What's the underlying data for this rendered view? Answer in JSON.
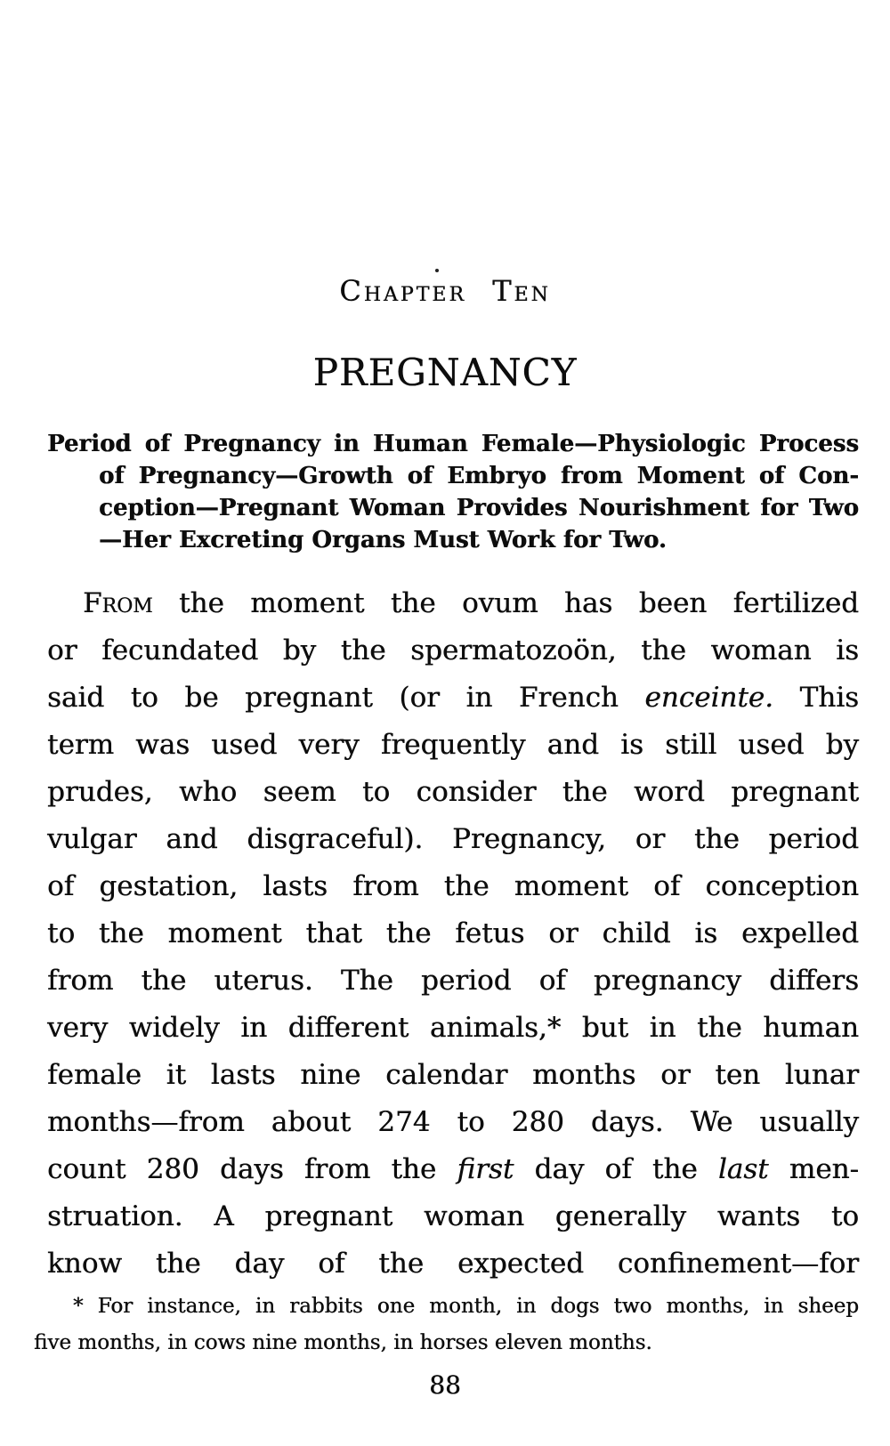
{
  "page": {
    "background": "#ffffff",
    "text_color": "#0d0d0d",
    "chapter_heading": "Chapter Ten",
    "title": "PREGNANCY",
    "page_number": "88"
  },
  "summary": {
    "lines": [
      {
        "parts": [
          {
            "t": "Period of Pregnancy in Human Female—Physiologic Process"
          }
        ],
        "indent": false,
        "justify": true
      },
      {
        "parts": [
          {
            "t": "of Pregnancy—Growth of Embryo from Moment of Con-"
          }
        ],
        "indent": true,
        "justify": true
      },
      {
        "parts": [
          {
            "t": "ception—Pregnant Woman Provides Nourishment for Two"
          }
        ],
        "indent": true,
        "justify": true
      },
      {
        "parts": [
          {
            "t": "—Her Excreting Organs Must Work for Two."
          }
        ],
        "indent": true,
        "justify": false
      }
    ]
  },
  "body": {
    "lines": [
      {
        "parts": [
          {
            "t": "From",
            "style": "smallcaps"
          },
          {
            "t": " the moment the ovum has been fertilized"
          }
        ],
        "first": true,
        "justify": true
      },
      {
        "parts": [
          {
            "t": "or fecundated by the spermatozoön, the woman is"
          }
        ],
        "justify": true
      },
      {
        "parts": [
          {
            "t": "said to be pregnant (or in French "
          },
          {
            "t": "enceinte.",
            "style": "italic"
          },
          {
            "t": " This"
          }
        ],
        "justify": true
      },
      {
        "parts": [
          {
            "t": "term was used very frequently and is still used by"
          }
        ],
        "justify": true
      },
      {
        "parts": [
          {
            "t": "prudes, who seem to consider the word pregnant"
          }
        ],
        "justify": true
      },
      {
        "parts": [
          {
            "t": "vulgar and disgraceful). Pregnancy, or the period"
          }
        ],
        "justify": true
      },
      {
        "parts": [
          {
            "t": "of gestation, lasts from the moment of conception"
          }
        ],
        "justify": true
      },
      {
        "parts": [
          {
            "t": "to the moment that the fetus or child is expelled"
          }
        ],
        "justify": true
      },
      {
        "parts": [
          {
            "t": "from the uterus. The period of pregnancy differs"
          }
        ],
        "justify": true
      },
      {
        "parts": [
          {
            "t": "very widely in different animals,* but in the human"
          }
        ],
        "justify": true
      },
      {
        "parts": [
          {
            "t": "female it lasts nine calendar months or ten lunar"
          }
        ],
        "justify": true
      },
      {
        "parts": [
          {
            "t": "months—from about 274 to 280 days. We usually"
          }
        ],
        "justify": true
      },
      {
        "parts": [
          {
            "t": "count 280 days from the "
          },
          {
            "t": "first",
            "style": "italic"
          },
          {
            "t": " day of the "
          },
          {
            "t": "last",
            "style": "italic"
          },
          {
            "t": " men-"
          }
        ],
        "justify": true
      },
      {
        "parts": [
          {
            "t": "struation. A pregnant woman generally wants to"
          }
        ],
        "justify": true
      },
      {
        "parts": [
          {
            "t": "know the day of the expected confinement—for"
          }
        ],
        "justify": true
      }
    ]
  },
  "footnote": {
    "lines": [
      {
        "parts": [
          {
            "t": "* For instance, in rabbits one month, in dogs two months, in sheep"
          }
        ],
        "indent": true,
        "justify": true
      },
      {
        "parts": [
          {
            "t": "five months, in cows nine months, in horses eleven months."
          }
        ],
        "indent": false,
        "justify": false
      }
    ]
  }
}
